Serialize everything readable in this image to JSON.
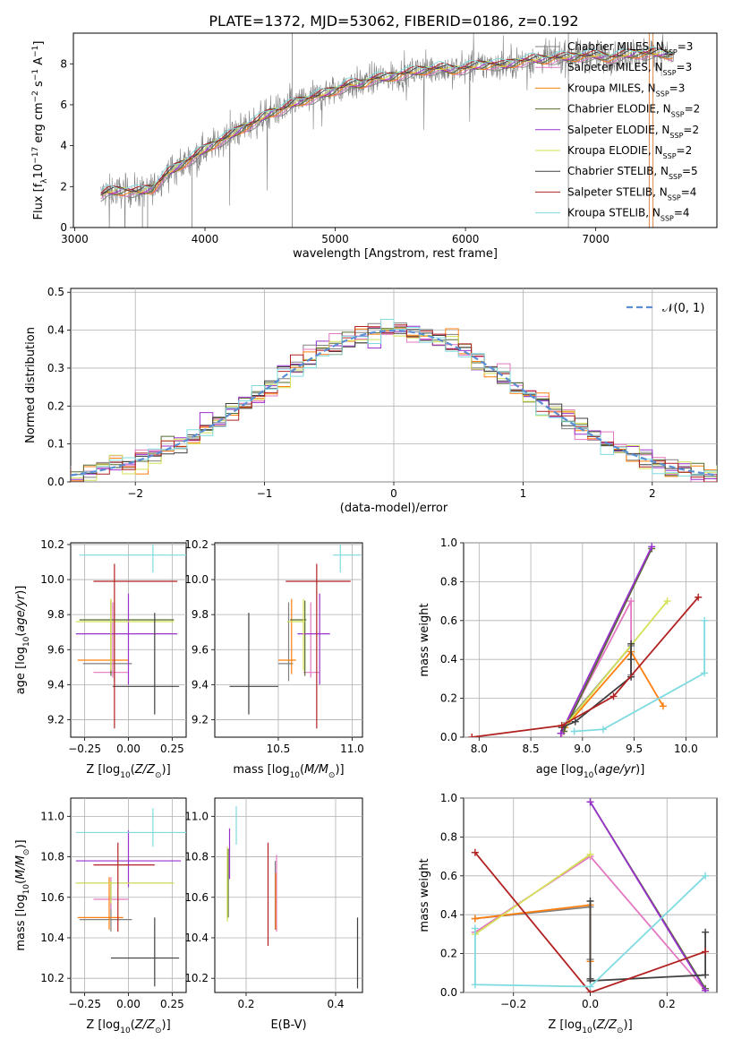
{
  "figure": {
    "title": "PLATE=1372, MJD=53062, FIBERID=0186, z=0.192"
  },
  "colors": {
    "Chabrier MILES": "#808080",
    "Salpeter MILES": "#e377c2",
    "Kroupa MILES": "#ff7f0e",
    "Chabrier ELODIE": "#556b2f",
    "Salpeter ELODIE": "#9932cc",
    "Kroupa ELODIE": "#d4e157",
    "Chabrier STELIB": "#404040",
    "Salpeter STELIB": "#b22222",
    "Kroupa STELIB": "#7fdbe0",
    "data": "#808080",
    "normal": "#5b8fd4"
  },
  "chart_data": [
    {
      "id": "spectrum",
      "type": "line",
      "xlabel": "wavelength [Angstrom, rest frame]",
      "ylabel": "Flux [f_λ10^-17 erg cm^-2 s^-1 A^-1]",
      "xlim": [
        2990,
        7930
      ],
      "ylim": [
        0,
        9.5
      ],
      "xticks": [
        3000,
        4000,
        5000,
        6000,
        7000
      ],
      "yticks": [
        0,
        2,
        4,
        6,
        8
      ],
      "legend_position": "right",
      "data_envelope": {
        "x": [
          3200,
          3250,
          3400,
          3500,
          3600,
          3700,
          3800,
          3900,
          4000,
          4100,
          4200,
          4300,
          4400,
          4500,
          4600,
          4700,
          4800,
          4900,
          5000,
          5100,
          5200,
          5300,
          5400,
          5500,
          5600,
          5700,
          5800,
          5900,
          6000,
          6100,
          6200,
          6300,
          6400,
          6500,
          6600,
          6700,
          6800,
          6900,
          7000,
          7100,
          7200,
          7300,
          7400,
          7500,
          7600
        ],
        "y": [
          1.6,
          1.75,
          1.8,
          1.75,
          1.9,
          2.6,
          3.0,
          3.4,
          3.8,
          4.2,
          4.5,
          4.9,
          5.2,
          5.6,
          5.8,
          6.1,
          6.3,
          6.5,
          6.7,
          7.0,
          7.0,
          7.3,
          7.3,
          7.5,
          7.6,
          7.7,
          7.8,
          7.7,
          7.8,
          7.9,
          8.0,
          7.9,
          8.1,
          8.2,
          8.2,
          8.3,
          8.3,
          8.4,
          8.4,
          8.3,
          8.4,
          8.5,
          8.5,
          8.5,
          8.4
        ]
      },
      "series": [
        {
          "name": "Chabrier MILES, N_SSP=3",
          "label": "Chabrier MILES, N",
          "sub": "SSP",
          "suffix": "=3"
        },
        {
          "name": "Salpeter MILES, N_SSP=3",
          "label": "Salpeter MILES, N",
          "sub": "SSP",
          "suffix": "=3"
        },
        {
          "name": "Kroupa MILES, N_SSP=3",
          "label": "Kroupa MILES, N",
          "sub": "SSP",
          "suffix": "=3"
        },
        {
          "name": "Chabrier ELODIE, N_SSP=2",
          "label": "Chabrier ELODIE, N",
          "sub": "SSP",
          "suffix": "=2"
        },
        {
          "name": "Salpeter ELODIE, N_SSP=2",
          "label": "Salpeter ELODIE, N",
          "sub": "SSP",
          "suffix": "=2"
        },
        {
          "name": "Kroupa ELODIE, N_SSP=2",
          "label": "Kroupa ELODIE, N",
          "sub": "SSP",
          "suffix": "=2"
        },
        {
          "name": "Chabrier STELIB, N_SSP=5",
          "label": "Chabrier STELIB, N",
          "sub": "SSP",
          "suffix": "=5"
        },
        {
          "name": "Salpeter STELIB, N_SSP=4",
          "label": "Salpeter STELIB, N",
          "sub": "SSP",
          "suffix": "=4"
        },
        {
          "name": "Kroupa STELIB, N_SSP=4",
          "label": "Kroupa STELIB, N",
          "sub": "SSP",
          "suffix": "=4"
        }
      ]
    },
    {
      "id": "residuals",
      "type": "line",
      "xlabel": "(data-model)/error",
      "ylabel": "Normed distribution",
      "xlim": [
        -2.5,
        2.5
      ],
      "ylim": [
        0,
        0.51
      ],
      "xticks": [
        -2,
        -1,
        0,
        1,
        2
      ],
      "yticks": [
        0.0,
        0.1,
        0.2,
        0.3,
        0.4,
        0.5
      ],
      "grid": true,
      "legend": "𝒩(0, 1)",
      "legend_position": "top-right",
      "bin_width": 0.1
    },
    {
      "id": "age-vs-Z",
      "type": "scatter",
      "xlabel": "Z [log10(Z/Z⊙)]",
      "ylabel": "age [log10(age/yr)]",
      "xlim": [
        -0.33,
        0.33
      ],
      "ylim": [
        9.1,
        10.21
      ],
      "xticks": [
        -0.25,
        0.0,
        0.25
      ],
      "yticks": [
        9.2,
        9.4,
        9.6,
        9.8,
        10.0,
        10.2
      ],
      "grid": true,
      "points": [
        {
          "model": "Chabrier MILES",
          "x": -0.08,
          "xerr": [
            0.18,
            0.1
          ],
          "y": 9.52,
          "yerr": [
            0.1,
            0.35
          ]
        },
        {
          "model": "Salpeter MILES",
          "x": -0.09,
          "xerr": [
            0.11,
            0.09
          ],
          "y": 9.47,
          "yerr": [
            0.03,
            0.4
          ]
        },
        {
          "model": "Kroupa MILES",
          "x": -0.1,
          "xerr": [
            0.19,
            0.1
          ],
          "y": 9.54,
          "yerr": [
            0.08,
            0.35
          ]
        },
        {
          "model": "Chabrier ELODIE",
          "x": -0.1,
          "xerr": [
            0.18,
            0.36
          ],
          "y": 9.77,
          "yerr": [
            0.32,
            0.11
          ]
        },
        {
          "model": "Salpeter ELODIE",
          "x": 0.0,
          "xerr": [
            0.3,
            0.28
          ],
          "y": 9.69,
          "yerr": [
            0.29,
            0.23
          ]
        },
        {
          "model": "Kroupa ELODIE",
          "x": -0.1,
          "xerr": [
            0.2,
            0.36
          ],
          "y": 9.76,
          "yerr": [
            0.28,
            0.13
          ]
        },
        {
          "model": "Chabrier STELIB",
          "x": 0.15,
          "xerr": [
            0.24,
            0.14
          ],
          "y": 9.39,
          "yerr": [
            0.16,
            0.42
          ]
        },
        {
          "model": "Salpeter STELIB",
          "x": -0.08,
          "xerr": [
            0.12,
            0.36
          ],
          "y": 9.99,
          "yerr": [
            0.84,
            0.1
          ]
        },
        {
          "model": "Kroupa STELIB",
          "x": 0.14,
          "xerr": [
            0.42,
            0.2
          ],
          "y": 10.14,
          "yerr": [
            0.1,
            0.06
          ]
        }
      ]
    },
    {
      "id": "age-vs-mass",
      "type": "scatter",
      "xlabel": "mass [log10(M/M⊙)]",
      "ylabel": "",
      "xlim": [
        10.07,
        11.07
      ],
      "ylim": [
        9.1,
        10.21
      ],
      "xticks": [
        10.5,
        11.0
      ],
      "yticks": [
        9.2,
        9.4,
        9.6,
        9.8,
        10.0,
        10.2
      ],
      "grid": true,
      "points": [
        {
          "model": "Chabrier MILES",
          "x": 10.57,
          "xerr": [
            0.07,
            0.03
          ],
          "y": 9.52,
          "yerr": [
            0.1,
            0.35
          ]
        },
        {
          "model": "Salpeter MILES",
          "x": 10.72,
          "xerr": [
            0.05,
            0.06
          ],
          "y": 9.47,
          "yerr": [
            0.03,
            0.4
          ]
        },
        {
          "model": "Kroupa MILES",
          "x": 10.59,
          "xerr": [
            0.09,
            0.03
          ],
          "y": 9.54,
          "yerr": [
            0.08,
            0.35
          ]
        },
        {
          "model": "Chabrier ELODIE",
          "x": 10.68,
          "xerr": [
            0.1,
            0.01
          ],
          "y": 9.77,
          "yerr": [
            0.32,
            0.11
          ]
        },
        {
          "model": "Salpeter ELODIE",
          "x": 10.78,
          "xerr": [
            0.15,
            0.07
          ],
          "y": 9.69,
          "yerr": [
            0.29,
            0.23
          ]
        },
        {
          "model": "Kroupa ELODIE",
          "x": 10.67,
          "xerr": [
            0.11,
            0.01
          ],
          "y": 9.76,
          "yerr": [
            0.28,
            0.13
          ]
        },
        {
          "model": "Chabrier STELIB",
          "x": 10.3,
          "xerr": [
            0.13,
            0.2
          ],
          "y": 9.39,
          "yerr": [
            0.16,
            0.42
          ]
        },
        {
          "model": "Salpeter STELIB",
          "x": 10.76,
          "xerr": [
            0.21,
            0.23
          ],
          "y": 9.99,
          "yerr": [
            0.84,
            0.1
          ]
        },
        {
          "model": "Kroupa STELIB",
          "x": 10.92,
          "xerr": [
            0.05,
            0.14
          ],
          "y": 10.14,
          "yerr": [
            0.1,
            0.06
          ]
        }
      ]
    },
    {
      "id": "massweight-vs-age",
      "type": "line",
      "xlabel": "age [log10(age/yr)]",
      "ylabel": "mass weight",
      "xlim": [
        7.85,
        10.3
      ],
      "ylim": [
        0,
        1
      ],
      "xticks": [
        8.0,
        8.5,
        9.0,
        9.5,
        10.0
      ],
      "yticks": [
        0.0,
        0.2,
        0.4,
        0.6,
        0.8,
        1.0
      ],
      "grid": true,
      "series": [
        {
          "model": "Chabrier MILES",
          "x": [
            8.82,
            9.47,
            9.47
          ],
          "y": [
            0.06,
            0.47,
            0.32
          ]
        },
        {
          "model": "Salpeter MILES",
          "x": [
            8.8,
            9.47,
            9.47
          ],
          "y": [
            0.02,
            0.7,
            0.31
          ]
        },
        {
          "model": "Kroupa MILES",
          "x": [
            8.83,
            9.47,
            9.78
          ],
          "y": [
            0.05,
            0.44,
            0.16
          ]
        },
        {
          "model": "Chabrier ELODIE",
          "x": [
            8.82,
            9.67
          ],
          "y": [
            0.03,
            0.97
          ]
        },
        {
          "model": "Salpeter ELODIE",
          "x": [
            8.79,
            9.67
          ],
          "y": [
            0.02,
            0.98
          ]
        },
        {
          "model": "Kroupa ELODIE",
          "x": [
            8.85,
            9.82
          ],
          "y": [
            0.07,
            0.7
          ]
        },
        {
          "model": "Chabrier STELIB",
          "x": [
            8.8,
            8.93,
            9.47,
            9.47,
            9.47
          ],
          "y": [
            0.05,
            0.08,
            0.31,
            0.48,
            0.4
          ]
        },
        {
          "model": "Salpeter STELIB",
          "x": [
            7.93,
            8.8,
            9.3,
            10.12
          ],
          "y": [
            0.0,
            0.06,
            0.21,
            0.72
          ]
        },
        {
          "model": "Kroupa STELIB",
          "x": [
            8.92,
            9.2,
            10.18,
            10.18
          ],
          "y": [
            0.03,
            0.04,
            0.33,
            0.6
          ]
        }
      ]
    },
    {
      "id": "mass-vs-Z",
      "type": "scatter",
      "xlabel": "Z [log10(Z/Z⊙)]",
      "ylabel": "mass [log10(M/M⊙)]",
      "xlim": [
        -0.33,
        0.33
      ],
      "ylim": [
        10.13,
        11.09
      ],
      "xticks": [
        -0.25,
        0.0,
        0.25
      ],
      "yticks": [
        10.2,
        10.4,
        10.6,
        10.8,
        11.0
      ],
      "grid": true,
      "points": [
        {
          "model": "Chabrier MILES",
          "x": -0.1,
          "xerr": [
            0.18,
            0.12
          ],
          "y": 10.49,
          "yerr": [
            0.06,
            0.12
          ]
        },
        {
          "model": "Salpeter MILES",
          "x": -0.1,
          "xerr": [
            0.1,
            0.1
          ],
          "y": 10.59,
          "yerr": [
            0.05,
            0.11
          ]
        },
        {
          "model": "Kroupa MILES",
          "x": -0.11,
          "xerr": [
            0.18,
            0.08
          ],
          "y": 10.5,
          "yerr": [
            0.06,
            0.2
          ]
        },
        {
          "model": "Chabrier ELODIE",
          "x": -0.1,
          "xerr": [
            0.2,
            0.36
          ],
          "y": 10.67,
          "yerr": [
            0.08,
            0.01
          ]
        },
        {
          "model": "Salpeter ELODIE",
          "x": 0.0,
          "xerr": [
            0.3,
            0.3
          ],
          "y": 10.78,
          "yerr": [
            0.13,
            0.15
          ]
        },
        {
          "model": "Kroupa ELODIE",
          "x": -0.1,
          "xerr": [
            0.2,
            0.36
          ],
          "y": 10.67,
          "yerr": [
            0.1,
            0.01
          ]
        },
        {
          "model": "Chabrier STELIB",
          "x": 0.15,
          "xerr": [
            0.25,
            0.14
          ],
          "y": 10.3,
          "yerr": [
            0.14,
            0.2
          ]
        },
        {
          "model": "Salpeter STELIB",
          "x": -0.06,
          "xerr": [
            0.14,
            0.21
          ],
          "y": 10.76,
          "yerr": [
            0.33,
            0.11
          ]
        },
        {
          "model": "Kroupa STELIB",
          "x": 0.14,
          "xerr": [
            0.44,
            0.2
          ],
          "y": 10.92,
          "yerr": [
            0.07,
            0.12
          ]
        }
      ]
    },
    {
      "id": "mass-vs-EBV",
      "type": "scatter",
      "xlabel": "E(B-V)",
      "ylabel": "",
      "xlim": [
        0.13,
        0.46
      ],
      "ylim": [
        10.13,
        11.09
      ],
      "xticks": [
        0.2,
        0.4
      ],
      "yticks": [
        10.2,
        10.4,
        10.6,
        10.8,
        11.0
      ],
      "grid": true,
      "points": [
        {
          "model": "Chabrier MILES",
          "x": 0.265,
          "y": 10.62,
          "yerr": [
            0.18,
            0.16
          ]
        },
        {
          "model": "Salpeter MILES",
          "x": 0.268,
          "y": 10.68,
          "yerr": [
            0.25,
            0.13
          ]
        },
        {
          "model": "Kroupa MILES",
          "x": 0.266,
          "y": 10.58,
          "yerr": [
            0.14,
            0.14
          ]
        },
        {
          "model": "Chabrier ELODIE",
          "x": 0.16,
          "y": 10.7,
          "yerr": [
            0.2,
            0.14
          ]
        },
        {
          "model": "Salpeter ELODIE",
          "x": 0.163,
          "y": 10.84,
          "yerr": [
            0.15,
            0.1
          ]
        },
        {
          "model": "Kroupa ELODIE",
          "x": 0.158,
          "y": 10.66,
          "yerr": [
            0.18,
            0.19
          ]
        },
        {
          "model": "Chabrier STELIB",
          "x": 0.449,
          "y": 10.32,
          "yerr": [
            0.17,
            0.18
          ]
        },
        {
          "model": "Salpeter STELIB",
          "x": 0.249,
          "y": 10.62,
          "yerr": [
            0.26,
            0.25
          ]
        },
        {
          "model": "Kroupa STELIB",
          "x": 0.178,
          "y": 10.93,
          "yerr": [
            0.07,
            0.12
          ]
        }
      ]
    },
    {
      "id": "massweight-vs-Z",
      "type": "line",
      "xlabel": "Z [log10(Z/Z⊙)]",
      "ylabel": "mass weight",
      "xlim": [
        -0.33,
        0.33
      ],
      "ylim": [
        0,
        1
      ],
      "xticks": [
        -0.2,
        0.0,
        0.2
      ],
      "yticks": [
        0.0,
        0.2,
        0.4,
        0.6,
        0.8,
        1.0
      ],
      "grid": true,
      "series": [
        {
          "model": "Chabrier MILES",
          "x": [
            -0.3,
            0.0,
            0.0
          ],
          "y": [
            0.38,
            0.44,
            0.17
          ]
        },
        {
          "model": "Salpeter MILES",
          "x": [
            -0.3,
            0.0,
            0.3
          ],
          "y": [
            0.31,
            0.7,
            0.01
          ]
        },
        {
          "model": "Kroupa MILES",
          "x": [
            -0.3,
            0.0,
            0.0
          ],
          "y": [
            0.38,
            0.45,
            0.16
          ]
        },
        {
          "model": "Chabrier ELODIE",
          "x": [
            0.0,
            0.3
          ],
          "y": [
            0.98,
            0.02
          ]
        },
        {
          "model": "Salpeter ELODIE",
          "x": [
            0.0,
            0.3
          ],
          "y": [
            0.98,
            0.01
          ]
        },
        {
          "model": "Kroupa ELODIE",
          "x": [
            -0.3,
            0.0
          ],
          "y": [
            0.3,
            0.71
          ]
        },
        {
          "model": "Chabrier STELIB",
          "x": [
            0.0,
            0.0,
            0.0,
            0.3,
            0.3
          ],
          "y": [
            0.47,
            0.07,
            0.06,
            0.09,
            0.31
          ]
        },
        {
          "model": "Salpeter STELIB",
          "x": [
            -0.3,
            0.0,
            0.3
          ],
          "y": [
            0.72,
            0.0,
            0.21
          ]
        },
        {
          "model": "Kroupa STELIB",
          "x": [
            -0.3,
            -0.3,
            0.0,
            0.3
          ],
          "y": [
            0.33,
            0.04,
            0.03,
            0.6
          ]
        }
      ]
    }
  ]
}
